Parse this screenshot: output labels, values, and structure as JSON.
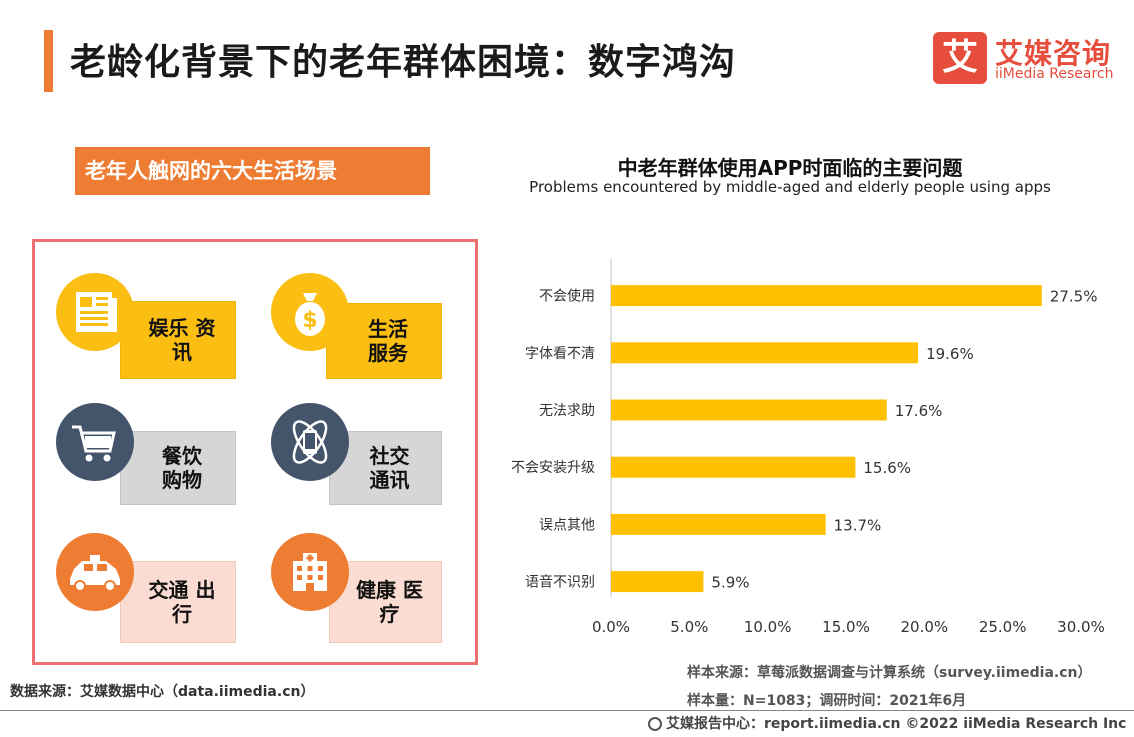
{
  "header": {
    "title": "老龄化背景下的老年群体困境：数字鸿沟"
  },
  "logo": {
    "box_char": "艾",
    "cn": "艾媒咨询",
    "en": "iiMedia Research"
  },
  "scenes": {
    "heading": "老年人触网的六大生活场景",
    "items": [
      {
        "line1": "娱乐 资",
        "line2": "讯",
        "icon": "newspaper-icon"
      },
      {
        "line1": "生活",
        "line2": "服务",
        "icon": "money-bag-icon"
      },
      {
        "line1": "餐饮",
        "line2": "购物",
        "icon": "shopping-cart-icon"
      },
      {
        "line1": "社交",
        "line2": "通讯",
        "icon": "phone-orbit-icon"
      },
      {
        "line1": "交通 出",
        "line2": "行",
        "icon": "police-car-icon"
      },
      {
        "line1": "健康 医",
        "line2": "疗",
        "icon": "hospital-icon"
      }
    ],
    "colors": {
      "yellow": "#fbbf14",
      "navy": "#44546a",
      "orange": "#ee7d33",
      "gray": "#d6d6d6",
      "pink": "#fbdcd2"
    }
  },
  "source_left": "数据来源：艾媒数据中心（data.iimedia.cn）",
  "chart_data": {
    "type": "bar",
    "orientation": "horizontal",
    "title": "中老年群体使用APP时面临的主要问题",
    "subtitle": "Problems encountered by middle-aged and elderly people using apps",
    "categories": [
      "不会使用",
      "字体看不清",
      "无法求助",
      "不会安装升级",
      "误点其他",
      "语音不识别"
    ],
    "values": [
      27.5,
      19.6,
      17.6,
      15.6,
      13.7,
      5.9
    ],
    "value_labels": [
      "27.5%",
      "19.6%",
      "17.6%",
      "15.6%",
      "13.7%",
      "5.9%"
    ],
    "xlim": [
      0,
      30
    ],
    "xticks": [
      0,
      5,
      10,
      15,
      20,
      25,
      30
    ],
    "xtick_labels": [
      "0.0%",
      "5.0%",
      "10.0%",
      "15.0%",
      "20.0%",
      "25.0%",
      "30.0%"
    ],
    "bar_color": "#ffc000",
    "grid": false
  },
  "source_right": {
    "line1": "样本来源：草莓派数据调查与计算系统（survey.iimedia.cn）",
    "line2": "样本量：N=1083；调研时间：2021年6月"
  },
  "footer": "艾媒报告中心：report.iimedia.cn   ©2022  iiMedia Research  Inc"
}
